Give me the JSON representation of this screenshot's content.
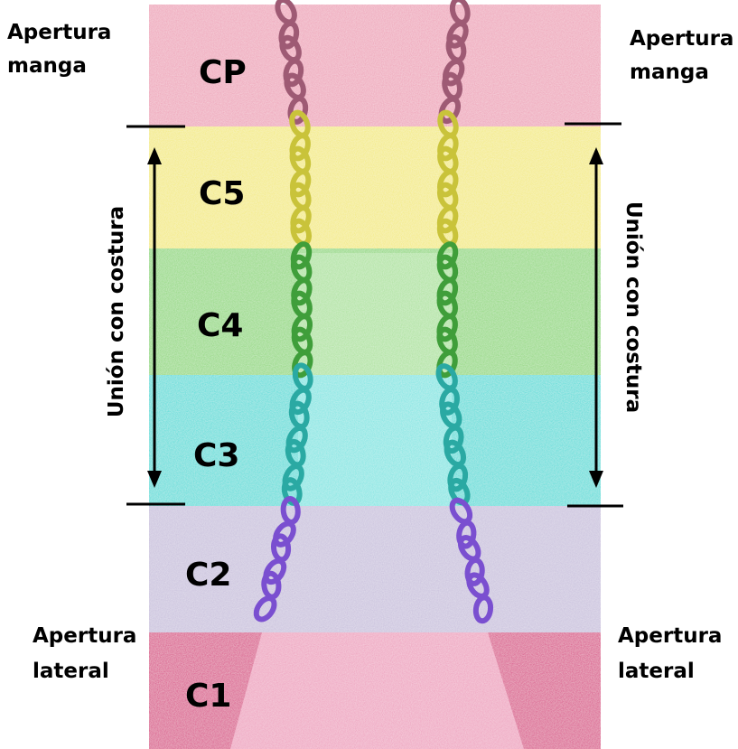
{
  "sleeve_opening": {
    "left": [
      "Apertura",
      "manga"
    ],
    "right": [
      "Apertura",
      "manga"
    ]
  },
  "side_opening": {
    "left": [
      "Apertura",
      "lateral"
    ],
    "right": [
      "Apertura",
      "lateral"
    ]
  },
  "seam_union": {
    "left": "Unión con costura",
    "right": "Unión con costura"
  },
  "rows": [
    "CP",
    "C5",
    "C4",
    "C3",
    "C2",
    "C1"
  ]
}
